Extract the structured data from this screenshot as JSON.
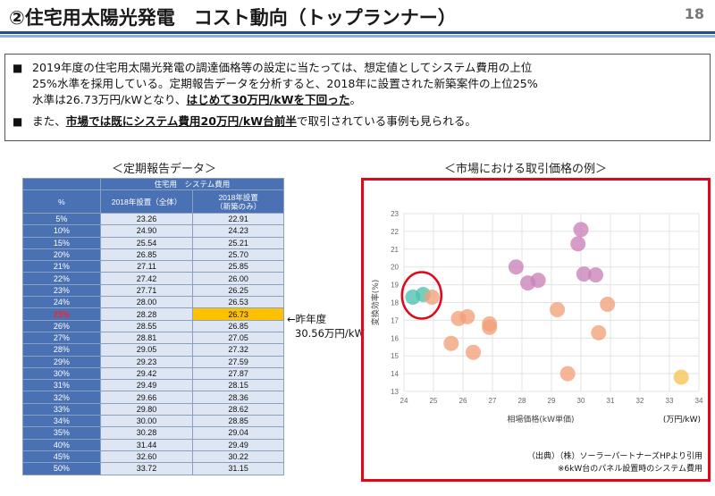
{
  "header": {
    "title": "②住宅用太陽光発電　コスト動向（トップランナー）",
    "page_number": "18"
  },
  "bullets": {
    "mark": "■",
    "b1_lines": [
      "2019年度の住宅用太陽光発電の調達価格等の設定に当たっては、想定値としてシステム費用の上位",
      "25%水準を採用している。定期報告データを分析すると、2018年に設置された新築案件の上位25%"
    ],
    "b1_line3_pre": "水準は26.73万円/kWとなり、",
    "b1_line3_hl": "はじめて30万円/kWを下回った",
    "b1_line3_post": "。",
    "b2_pre": "また、",
    "b2_hl": "市場では既にシステム費用20万円/kW台前半",
    "b2_post": "で取引されている事例も見られる。"
  },
  "table": {
    "caption": "＜定期報告データ＞",
    "group_header": "住宅用　システム費用",
    "col_pct": "%",
    "col_all": "2018年設置（全体）",
    "col_new_l1": "2018年設置",
    "col_new_l2": "（新築のみ）",
    "rows": [
      {
        "pct": "5%",
        "all": "23.26",
        "new": "22.91"
      },
      {
        "pct": "10%",
        "all": "24.90",
        "new": "24.23"
      },
      {
        "pct": "15%",
        "all": "25.54",
        "new": "25.21"
      },
      {
        "pct": "20%",
        "all": "26.85",
        "new": "25.70"
      },
      {
        "pct": "21%",
        "all": "27.11",
        "new": "25.85"
      },
      {
        "pct": "22%",
        "all": "27.42",
        "new": "26.00"
      },
      {
        "pct": "23%",
        "all": "27.71",
        "new": "26.25"
      },
      {
        "pct": "24%",
        "all": "28.00",
        "new": "26.53"
      },
      {
        "pct": "25%",
        "all": "28.28",
        "new": "26.73"
      },
      {
        "pct": "26%",
        "all": "28.55",
        "new": "26.85"
      },
      {
        "pct": "27%",
        "all": "28.81",
        "new": "27.05"
      },
      {
        "pct": "28%",
        "all": "29.05",
        "new": "27.32"
      },
      {
        "pct": "29%",
        "all": "29.23",
        "new": "27.59"
      },
      {
        "pct": "30%",
        "all": "29.42",
        "new": "27.87"
      },
      {
        "pct": "31%",
        "all": "29.49",
        "new": "28.15"
      },
      {
        "pct": "32%",
        "all": "29.66",
        "new": "28.36"
      },
      {
        "pct": "33%",
        "all": "29.80",
        "new": "28.62"
      },
      {
        "pct": "34%",
        "all": "30.00",
        "new": "28.85"
      },
      {
        "pct": "35%",
        "all": "30.28",
        "new": "29.04"
      },
      {
        "pct": "40%",
        "all": "31.44",
        "new": "29.49"
      },
      {
        "pct": "45%",
        "all": "32.60",
        "new": "30.22"
      },
      {
        "pct": "50%",
        "all": "33.72",
        "new": "31.15"
      }
    ],
    "highlight_pct": "25%",
    "highlight_color": "#ffc000"
  },
  "prev_year_note": {
    "line1": "←昨年度",
    "line2": "30.56万円/kW"
  },
  "chart_data": {
    "type": "scatter",
    "caption": "＜市場における取引価格の例＞",
    "xlabel": "相場価格(kW単価)",
    "ylabel": "変換効率(%)",
    "x_unit_note": "(万円/kW)",
    "xlim": [
      24,
      34
    ],
    "ylim": [
      13,
      23
    ],
    "x_ticks": [
      "24",
      "25",
      "26",
      "27",
      "28",
      "29",
      "30",
      "31",
      "32",
      "33",
      "34"
    ],
    "y_ticks": [
      "13",
      "14",
      "15",
      "16",
      "17",
      "18",
      "19",
      "20",
      "21",
      "22",
      "23"
    ],
    "grid": true,
    "points": [
      {
        "x": 24.3,
        "y": 18.3,
        "color": "#4fc0b0"
      },
      {
        "x": 24.65,
        "y": 18.45,
        "color": "#4fc0b0"
      },
      {
        "x": 24.95,
        "y": 18.3,
        "color": "#f2a07a"
      },
      {
        "x": 25.6,
        "y": 15.7,
        "color": "#f2a07a"
      },
      {
        "x": 25.85,
        "y": 17.1,
        "color": "#f2a07a"
      },
      {
        "x": 26.15,
        "y": 17.2,
        "color": "#f2a07a"
      },
      {
        "x": 26.35,
        "y": 15.2,
        "color": "#f2a07a"
      },
      {
        "x": 26.9,
        "y": 16.8,
        "color": "#f2a07a"
      },
      {
        "x": 26.9,
        "y": 16.6,
        "color": "#f2a07a"
      },
      {
        "x": 27.8,
        "y": 20.0,
        "color": "#c982b8"
      },
      {
        "x": 28.2,
        "y": 19.1,
        "color": "#c982b8"
      },
      {
        "x": 28.55,
        "y": 19.25,
        "color": "#c982b8"
      },
      {
        "x": 29.2,
        "y": 17.6,
        "color": "#f2a07a"
      },
      {
        "x": 29.55,
        "y": 14.0,
        "color": "#f2a07a"
      },
      {
        "x": 29.9,
        "y": 21.3,
        "color": "#c982b8"
      },
      {
        "x": 30.0,
        "y": 22.1,
        "color": "#c982b8"
      },
      {
        "x": 30.1,
        "y": 19.6,
        "color": "#c982b8"
      },
      {
        "x": 30.5,
        "y": 19.55,
        "color": "#c982b8"
      },
      {
        "x": 30.6,
        "y": 16.3,
        "color": "#f2a07a"
      },
      {
        "x": 30.9,
        "y": 17.9,
        "color": "#f2a07a"
      },
      {
        "x": 33.4,
        "y": 13.8,
        "color": "#f6c455"
      }
    ],
    "highlight_circle": {
      "x": 24.6,
      "y": 18.4,
      "color": "#e2061b"
    },
    "source_line1": "（出典）（株）ソーラーパートナーズHPより引用",
    "source_line2": "※6kW台のパネル設置時のシステム費用"
  }
}
